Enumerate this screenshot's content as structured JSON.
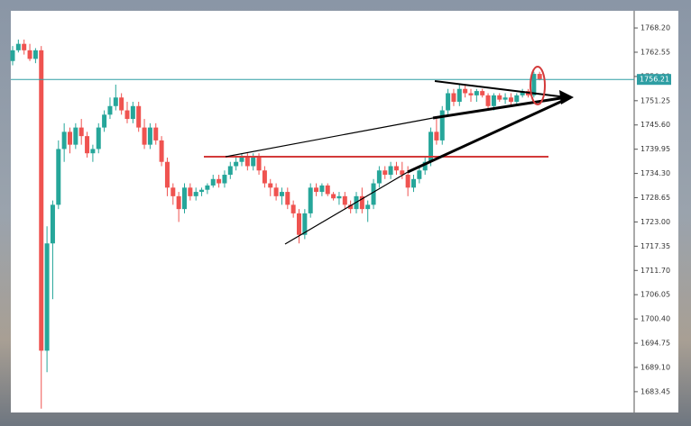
{
  "chart_data": {
    "type": "candlestick",
    "up_color": "#26a69a",
    "down_color": "#ef5350",
    "open": [
      1760.5,
      1763,
      1764.5,
      1763,
      1761,
      1763,
      1693,
      1718,
      1727,
      1740,
      1744,
      1741,
      1745,
      1743,
      1739,
      1740,
      1745,
      1748,
      1750,
      1752,
      1749,
      1747,
      1750,
      1745,
      1741,
      1745,
      1742,
      1737,
      1731,
      1729,
      1726,
      1731,
      1729,
      1730,
      1730.5,
      1731.5,
      1733,
      1732,
      1734,
      1736,
      1737,
      1738,
      1736,
      1738,
      1735,
      1732,
      1731,
      1729,
      1730,
      1727,
      1725,
      1720,
      1725,
      1731,
      1730,
      1731.5,
      1729.5,
      1728.5,
      1729,
      1727,
      1726,
      1729,
      1726,
      1727,
      1732,
      1735,
      1734,
      1736,
      1735,
      1734,
      1731,
      1733,
      1735,
      1737,
      1744,
      1742,
      1749,
      1753,
      1751,
      1754,
      1753,
      1752.5,
      1753.5,
      1752.5,
      1750,
      1752.5,
      1751.5,
      1752,
      1751,
      1752.5,
      1753.5,
      1752.5,
      1757.5
    ],
    "high": [
      1764,
      1765.5,
      1765.5,
      1764.5,
      1763.5,
      1764,
      1722,
      1728,
      1742,
      1746,
      1745,
      1746,
      1747,
      1744,
      1741,
      1746,
      1749,
      1752,
      1755,
      1753,
      1751,
      1751,
      1751,
      1747,
      1746,
      1746,
      1743,
      1738,
      1732,
      1730,
      1732,
      1732,
      1731,
      1731,
      1732,
      1734,
      1734,
      1735,
      1737,
      1738,
      1739,
      1739,
      1739,
      1739,
      1736,
      1733,
      1732,
      1731,
      1731,
      1728,
      1726,
      1726,
      1732,
      1732,
      1732,
      1732,
      1730,
      1730,
      1730,
      1728,
      1730,
      1731,
      1728,
      1733,
      1736,
      1736,
      1737,
      1737,
      1737,
      1736,
      1734,
      1736,
      1738,
      1745,
      1747,
      1750,
      1754,
      1754,
      1755,
      1755,
      1754,
      1754,
      1754,
      1753,
      1753,
      1753,
      1753,
      1753,
      1753,
      1754,
      1754,
      1758,
      1758
    ],
    "low": [
      1759.5,
      1762.5,
      1762,
      1760.5,
      1760,
      1679.5,
      1688,
      1705,
      1726,
      1737,
      1739,
      1740,
      1741,
      1738,
      1737,
      1739,
      1744,
      1747,
      1749,
      1748,
      1746,
      1746,
      1744,
      1740,
      1740,
      1741,
      1736,
      1729,
      1727,
      1723,
      1725,
      1728,
      1728,
      1729,
      1729.5,
      1731,
      1731,
      1731,
      1733,
      1735,
      1736,
      1735,
      1735,
      1734,
      1731,
      1729,
      1728,
      1727,
      1726,
      1724,
      1718,
      1719,
      1724,
      1729,
      1729,
      1729,
      1728,
      1727,
      1726,
      1725,
      1725,
      1725,
      1723,
      1726,
      1731,
      1733,
      1733,
      1734,
      1733,
      1729,
      1730,
      1732,
      1734,
      1736,
      1741,
      1741,
      1748,
      1750,
      1750,
      1752,
      1751,
      1751,
      1752,
      1749,
      1749,
      1751,
      1750.5,
      1750,
      1750,
      1752,
      1752,
      1752,
      1756
    ],
    "close": [
      1763,
      1764.5,
      1763,
      1761,
      1763,
      1693,
      1718,
      1727,
      1740,
      1744,
      1741,
      1745,
      1743,
      1739,
      1740,
      1745,
      1748,
      1750,
      1752,
      1749,
      1747,
      1750,
      1745,
      1741,
      1745,
      1742,
      1737,
      1731,
      1729,
      1726,
      1731,
      1729,
      1730,
      1730.5,
      1731.5,
      1733,
      1732,
      1734,
      1736,
      1737,
      1738,
      1736,
      1738,
      1735,
      1732,
      1731,
      1729,
      1730,
      1727,
      1725,
      1720,
      1725,
      1731,
      1730,
      1731.5,
      1729.5,
      1728.5,
      1729,
      1727,
      1726,
      1729,
      1726,
      1727,
      1732,
      1735,
      1734,
      1736,
      1735,
      1734,
      1731,
      1733,
      1735,
      1737,
      1744,
      1742,
      1749,
      1753,
      1751,
      1754,
      1753,
      1752.5,
      1753.5,
      1752.5,
      1750,
      1752.5,
      1751.5,
      1752,
      1751,
      1752.5,
      1753.5,
      1752.5,
      1757.5,
      1756.21
    ],
    "last_price": 1756.21,
    "last_price_color": "#2e9ea3",
    "ylim": [
      1678.6,
      1772.2
    ],
    "yticks": [
      {
        "value": 1768.2,
        "label": "1768.20"
      },
      {
        "value": 1762.55,
        "label": "1762.55"
      },
      {
        "value": 1756.9,
        "label": "1756.90"
      },
      {
        "value": 1751.25,
        "label": "1751.25"
      },
      {
        "value": 1745.6,
        "label": "1745.60"
      },
      {
        "value": 1739.95,
        "label": "1739.95"
      },
      {
        "value": 1734.3,
        "label": "1734.30"
      },
      {
        "value": 1728.65,
        "label": "1728.65"
      },
      {
        "value": 1723,
        "label": "1723.00"
      },
      {
        "value": 1717.35,
        "label": "1717.35"
      },
      {
        "value": 1711.7,
        "label": "1711.70"
      },
      {
        "value": 1706.05,
        "label": "1706.05"
      },
      {
        "value": 1700.4,
        "label": "1700.40"
      },
      {
        "value": 1694.75,
        "label": "1694.75"
      },
      {
        "value": 1689.1,
        "label": "1689.10"
      },
      {
        "value": 1683.45,
        "label": "1683.45"
      }
    ]
  }
}
